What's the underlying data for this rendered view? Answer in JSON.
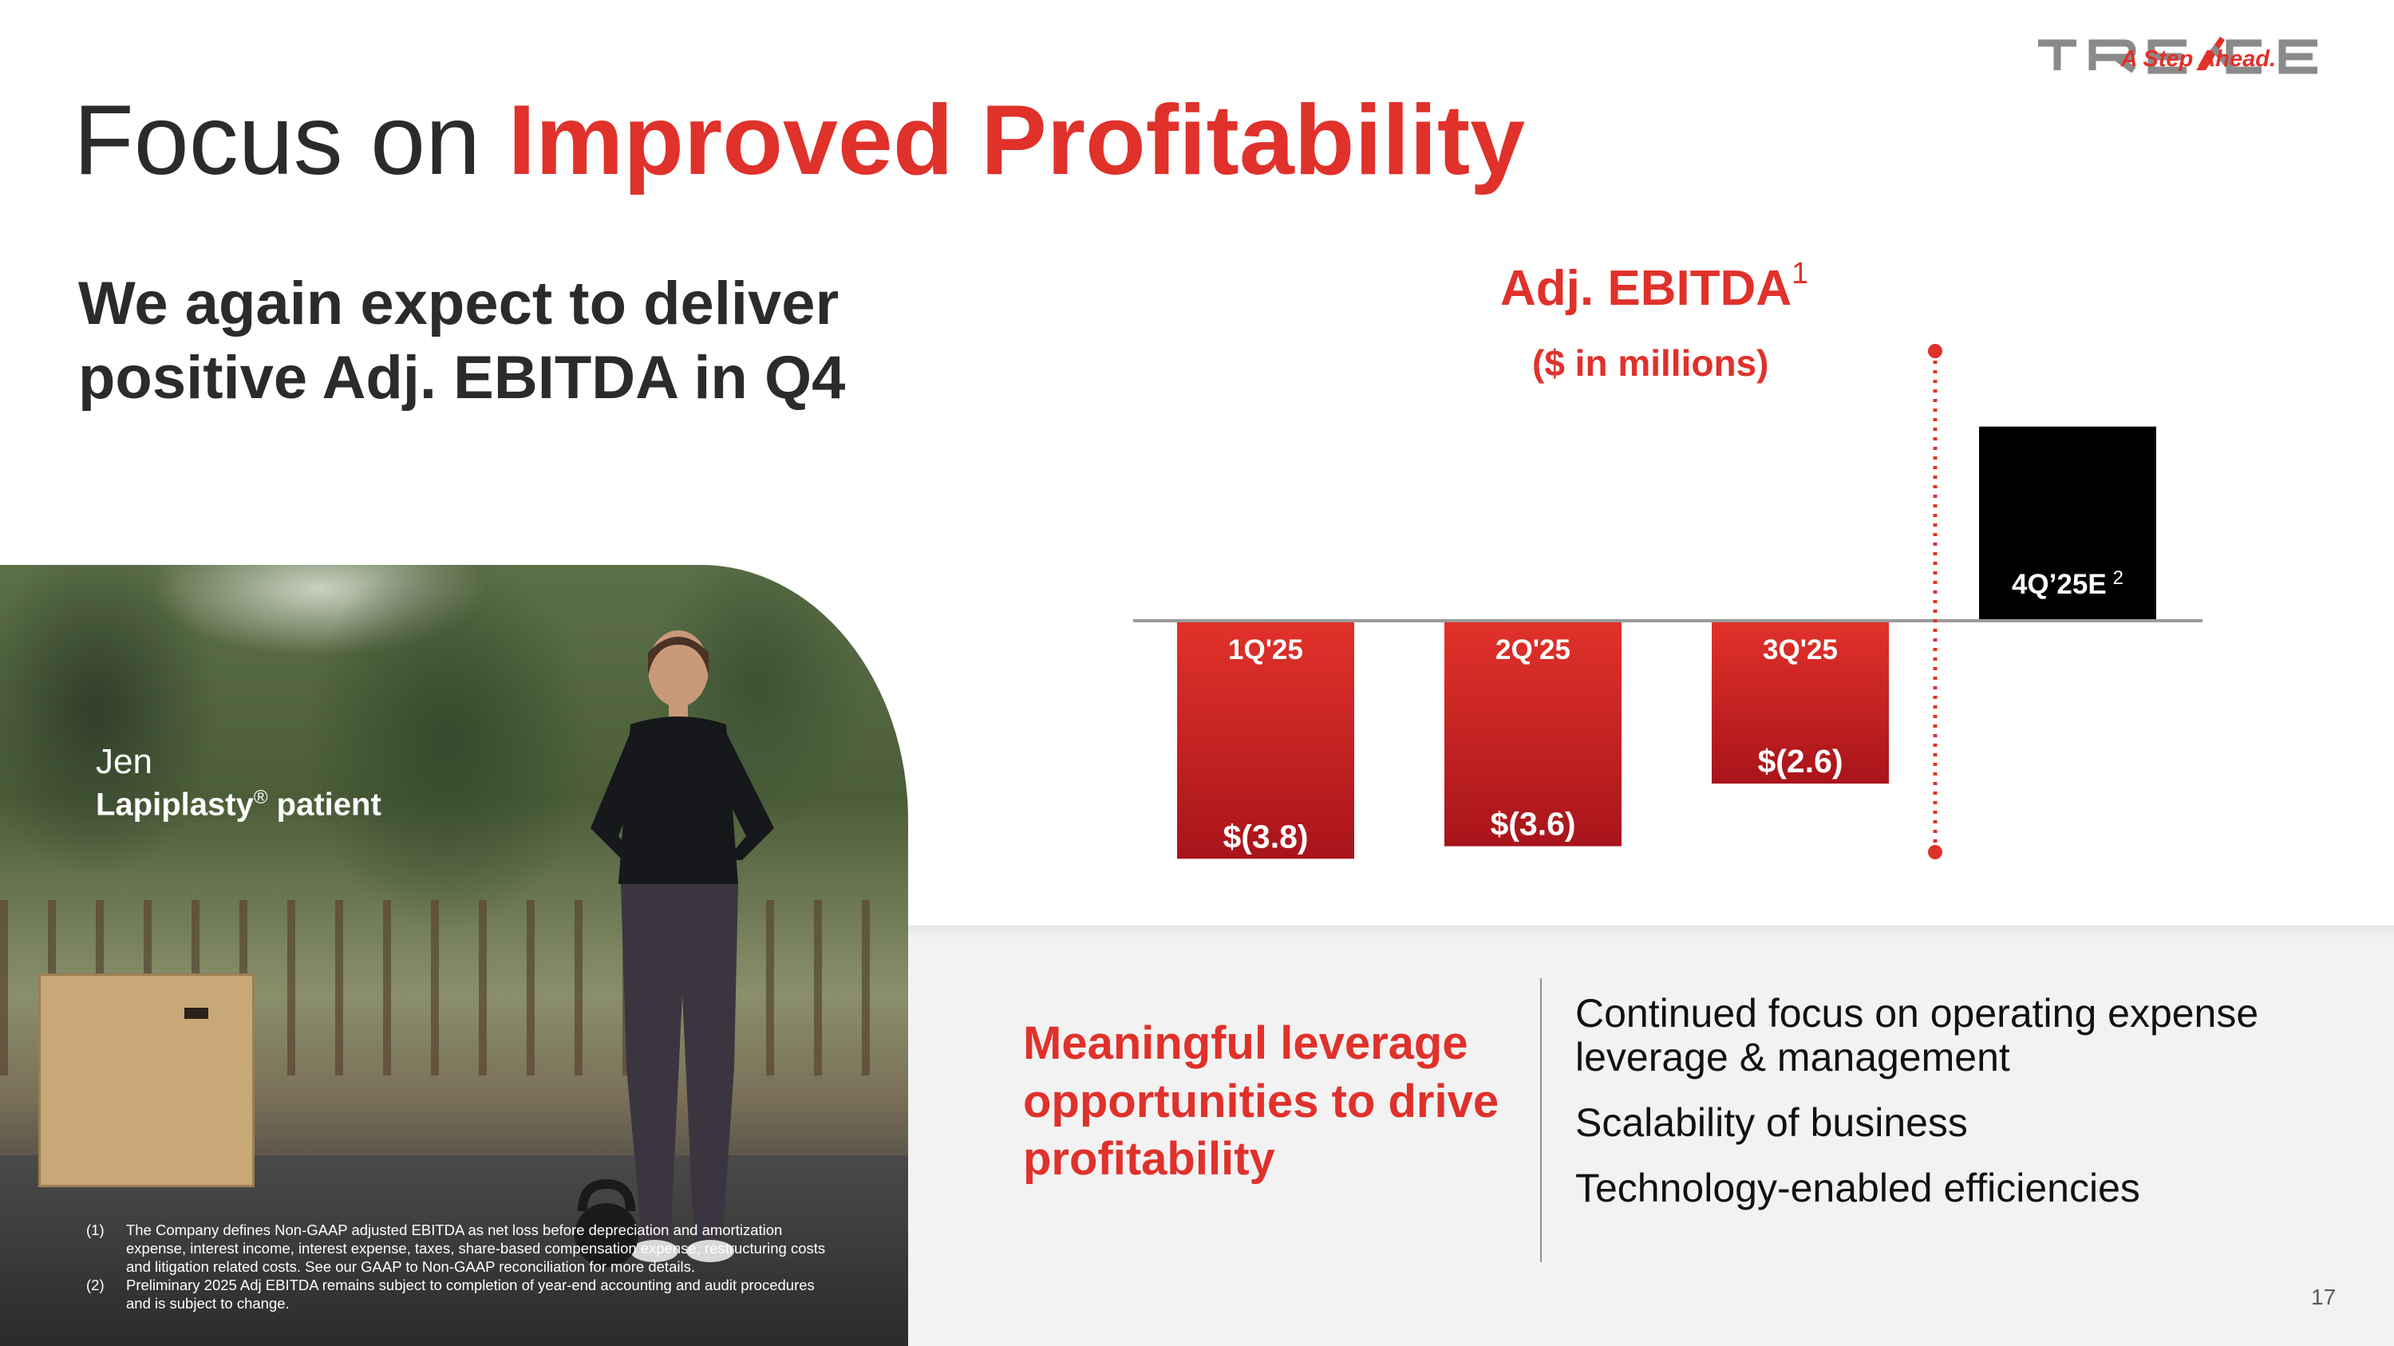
{
  "header": {
    "title_plain": "Focus on ",
    "title_accent": "Improved Profitability"
  },
  "logo": {
    "wordmark": "TREACE",
    "tagline": "A Step Ahead."
  },
  "subhead": "We again expect to deliver positive Adj. EBITDA in Q4",
  "photo": {
    "name": "Jen",
    "caption_brand": "Lapiplasty",
    "caption_mark": "®",
    "caption_rest": " patient"
  },
  "footnotes": [
    {
      "num": "(1)",
      "text": "The Company defines Non-GAAP adjusted EBITDA as net loss before depreciation and amortization expense, interest income, interest expense, taxes, share-based compensation expense, restructuring costs and litigation related costs. See our GAAP to Non-GAAP reconciliation for more details."
    },
    {
      "num": "(2)",
      "text": "Preliminary 2025 Adj EBITDA remains subject to completion of year-end accounting and audit procedures and is subject to change."
    }
  ],
  "chart_data": {
    "type": "bar",
    "title": "Adj. EBITDA",
    "title_footnote": "1",
    "subtitle": "($ in millions)",
    "categories": [
      "1Q'25",
      "2Q'25",
      "3Q'25",
      "4Q’25E"
    ],
    "category_footnotes": [
      "",
      "",
      "",
      "2"
    ],
    "values": [
      -3.8,
      -3.6,
      -2.6,
      3.1
    ],
    "value_labels": [
      "$(3.8)",
      "$(3.6)",
      "$(2.6)",
      ""
    ],
    "ylim": [
      -4,
      3.5
    ],
    "grid": false,
    "colors": {
      "actual_top": "#e2322a",
      "actual_bottom": "#a8141b",
      "estimate": "#000000",
      "baseline": "#9a9a9a",
      "divider": "#e0312b"
    }
  },
  "callout": "Meaningful leverage opportunities to drive profitability",
  "bullets": [
    "Continued focus on operating expense leverage & management",
    "Scalability of business",
    "Technology-enabled efficiencies"
  ],
  "page_number": "17",
  "colors": {
    "accent": "#e0312b",
    "text_dark": "#2b2b2b"
  }
}
